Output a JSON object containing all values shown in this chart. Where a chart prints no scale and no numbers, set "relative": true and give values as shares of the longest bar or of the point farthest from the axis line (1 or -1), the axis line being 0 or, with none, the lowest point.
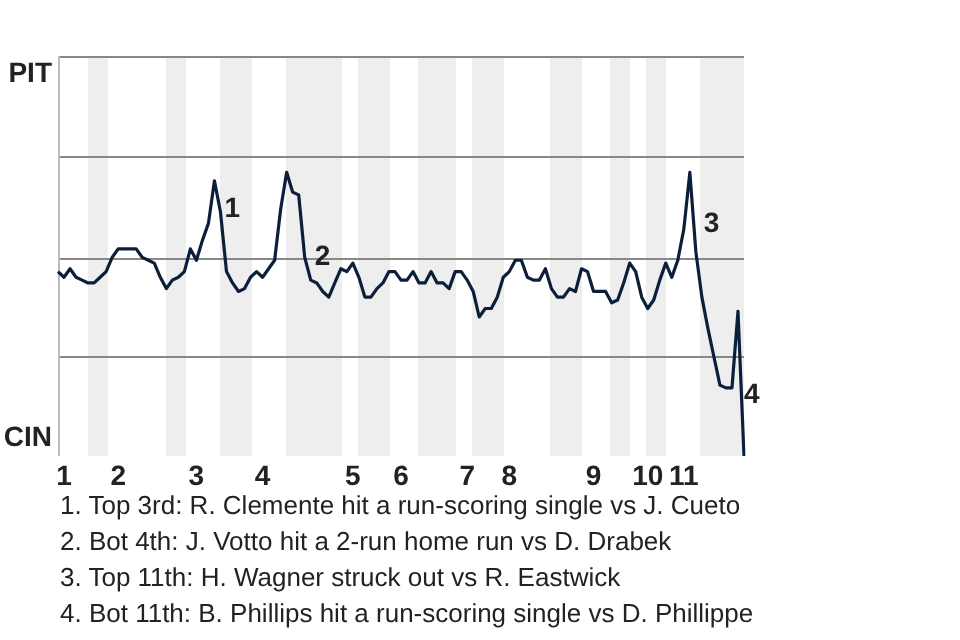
{
  "chart_data": {
    "type": "line",
    "relative": true,
    "categories": [
      null,
      "1",
      null,
      null,
      null,
      null,
      null,
      null,
      null,
      null,
      "2",
      null,
      null,
      null,
      null,
      null,
      null,
      null,
      null,
      null,
      null,
      null,
      null,
      "3",
      null,
      null,
      null,
      null,
      null,
      null,
      null,
      null,
      null,
      null,
      "4",
      null,
      null,
      null,
      null,
      null,
      null,
      null,
      null,
      null,
      null,
      null,
      null,
      null,
      null,
      "5",
      null,
      null,
      null,
      null,
      null,
      null,
      null,
      "6",
      null,
      null,
      null,
      null,
      null,
      null,
      null,
      null,
      null,
      null,
      "7",
      null,
      null,
      null,
      null,
      null,
      null,
      "8",
      null,
      null,
      null,
      null,
      null,
      null,
      null,
      null,
      null,
      null,
      null,
      null,
      null,
      "9",
      null,
      null,
      null,
      null,
      null,
      null,
      null,
      null,
      "10",
      null,
      null,
      null,
      null,
      null,
      "11",
      null,
      null,
      null,
      null,
      null,
      null,
      null,
      null,
      null,
      null
    ],
    "ref_lines": [
      {
        "axis": "y",
        "value": 0.35,
        "color": "#888888"
      },
      {
        "axis": "y",
        "value": 0.7,
        "color": "#888888"
      },
      {
        "axis": "y",
        "value": 1.06,
        "color": "#888888"
      },
      {
        "axis": "y",
        "value": 1.41,
        "color": "#888888"
      }
    ],
    "legend": false,
    "marker": "none",
    "series": [
      {
        "color": "#0b1f3a",
        "values": [
          0.65,
          0.63,
          0.66,
          0.63,
          0.62,
          0.61,
          0.61,
          0.63,
          0.65,
          0.7,
          0.73,
          0.73,
          0.73,
          0.73,
          0.7,
          0.69,
          0.68,
          0.63,
          0.59,
          0.62,
          0.63,
          0.65,
          0.73,
          0.69,
          0.76,
          0.82,
          0.97,
          0.86,
          0.65,
          0.61,
          0.58,
          0.59,
          0.63,
          0.65,
          0.63,
          0.66,
          0.69,
          0.87,
          1,
          0.93,
          0.92,
          0.7,
          0.62,
          0.61,
          0.58,
          0.56,
          0.61,
          0.66,
          0.65,
          0.68,
          0.63,
          0.56,
          0.56,
          0.59,
          0.61,
          0.65,
          0.65,
          0.62,
          0.62,
          0.65,
          0.61,
          0.61,
          0.65,
          0.61,
          0.61,
          0.59,
          0.65,
          0.65,
          0.62,
          0.58,
          0.49,
          0.52,
          0.52,
          0.56,
          0.63,
          0.65,
          0.69,
          0.69,
          0.63,
          0.62,
          0.62,
          0.66,
          0.59,
          0.56,
          0.56,
          0.59,
          0.58,
          0.66,
          0.65,
          0.58,
          0.58,
          0.58,
          0.54,
          0.55,
          0.61,
          0.68,
          0.65,
          0.56,
          0.52,
          0.55,
          0.62,
          0.68,
          0.63,
          0.69,
          0.8,
          1,
          0.72,
          0.56,
          0.45,
          0.35,
          0.25,
          0.24,
          0.24,
          0.51,
          0
        ]
      }
    ],
    "annotations": [
      "PIT",
      "CIN",
      "1",
      "2",
      "3",
      "4",
      "1. Top 3rd: R. Clemente hit a run-scoring single vs J. Cueto",
      "2. Bot 4th: J. Votto hit a 2-run home run vs D. Drabek",
      "3. Top 11th: H. Wagner struck out vs R. Eastwick",
      "4. Bot 11th: B. Phillips hit a run-scoring single vs D. Phillippe"
    ]
  }
}
